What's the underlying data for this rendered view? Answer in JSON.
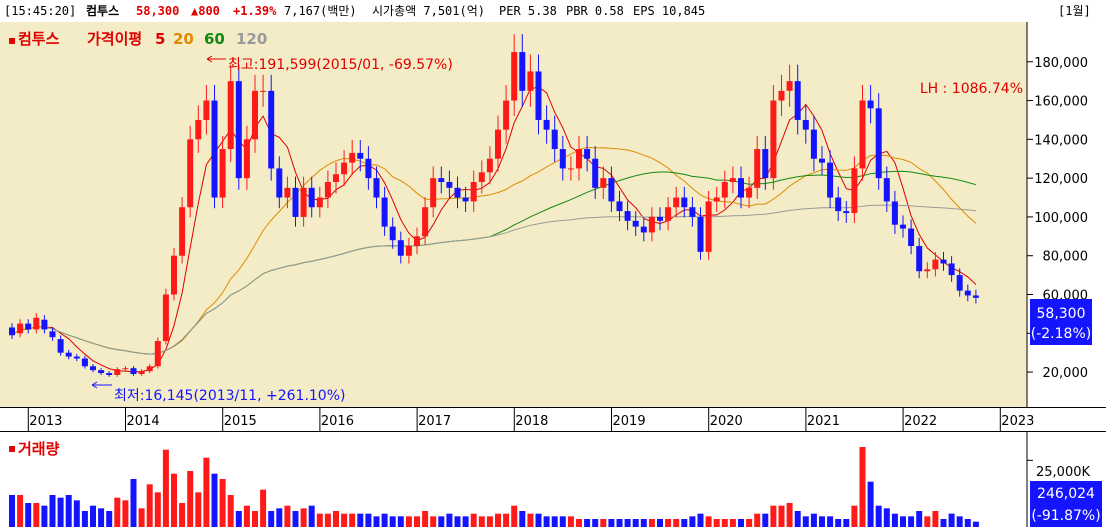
{
  "header": {
    "time": "[15:45:20]",
    "name": "컴투스",
    "price": "58,300",
    "change": "▲800",
    "change_pct": "+1.39%",
    "cap_label": "7,167(백만)",
    "market_cap": "시가총액 7,501(억)",
    "per": "PER 5.38",
    "pbr": "PBR 0.58",
    "eps": "EPS 10,845",
    "period": "[1월]"
  },
  "legend": {
    "marker": "▪",
    "name": "컴투스",
    "ma_prefix": "가격이평",
    "ma": [
      {
        "label": "5",
        "color": "#e00000"
      },
      {
        "label": "20",
        "color": "#e08a00"
      },
      {
        "label": "60",
        "color": "#128a12"
      },
      {
        "label": "120",
        "color": "#9a9a9a"
      }
    ]
  },
  "annotations": {
    "high": "최고:191,599(2015/01, -69.57%)",
    "low": "최저:16,145(2013/11, +261.10%)",
    "lh": "LH : 1086.74%",
    "last_price": "58,300",
    "last_pct": "(-2.18%)"
  },
  "volume": {
    "title": "거래량",
    "axis_label": "25,000K",
    "last_value": "246,024",
    "last_pct": "(-91.87%)"
  },
  "colors": {
    "up": "#ff1a1a",
    "down": "#1414ff",
    "bg": "#f3ecc6",
    "ma5": "#e00000",
    "ma20": "#e08a00",
    "ma60": "#128a12",
    "ma120": "#9a9a9a"
  },
  "chart_data": {
    "type": "candlestick",
    "interval": "monthly",
    "start": "2012-10",
    "y_ticks": [
      20000,
      40000,
      60000,
      80000,
      100000,
      120000,
      140000,
      160000,
      180000
    ],
    "y_tick_labels": [
      "20,000",
      "40,000",
      "60,000",
      "80,000",
      "100,000",
      "120,000",
      "140,000",
      "160,000",
      "180,000"
    ],
    "ylim": [
      2000,
      200500
    ],
    "x_ticks": [
      {
        "label": "2013",
        "index": 3
      },
      {
        "label": "2014",
        "index": 15
      },
      {
        "label": "2015",
        "index": 27
      },
      {
        "label": "2016",
        "index": 39
      },
      {
        "label": "2017",
        "index": 51
      },
      {
        "label": "2018",
        "index": 63
      },
      {
        "label": "2019",
        "index": 75
      },
      {
        "label": "2020",
        "index": 87
      },
      {
        "label": "2021",
        "index": 99
      },
      {
        "label": "2022",
        "index": 111
      },
      {
        "label": "2023",
        "index": 123
      }
    ],
    "close": [
      39000,
      45000,
      42000,
      48000,
      42000,
      38000,
      30000,
      28000,
      27000,
      23000,
      21000,
      19500,
      18500,
      21500,
      22000,
      19000,
      20500,
      23000,
      36000,
      60000,
      80000,
      105000,
      140000,
      150000,
      160000,
      110000,
      135000,
      170000,
      120000,
      140000,
      165000,
      165000,
      125000,
      110000,
      115000,
      100000,
      115000,
      105000,
      110000,
      118000,
      122000,
      128000,
      133000,
      130000,
      120000,
      110000,
      95000,
      88000,
      80000,
      85000,
      90000,
      105000,
      120000,
      118000,
      115000,
      110000,
      108000,
      118000,
      123000,
      130000,
      145000,
      160000,
      185000,
      165000,
      175000,
      150000,
      145000,
      135000,
      125000,
      125000,
      135000,
      130000,
      115000,
      120000,
      108000,
      103000,
      98000,
      95000,
      92000,
      100000,
      98000,
      105000,
      110000,
      105000,
      100000,
      82000,
      108000,
      110000,
      118000,
      120000,
      110000,
      115000,
      135000,
      120000,
      160000,
      165000,
      170000,
      150000,
      145000,
      130000,
      128000,
      110000,
      103000,
      102000,
      125000,
      160000,
      156000,
      120000,
      108000,
      96000,
      94000,
      85000,
      72000,
      73000,
      78000,
      76000,
      70000,
      62000,
      59500,
      58300
    ],
    "open": [
      43000,
      40000,
      45000,
      42000,
      47000,
      41000,
      37000,
      30000,
      28000,
      27000,
      23000,
      21000,
      19500,
      18500,
      21500,
      22000,
      19000,
      20500,
      23000,
      36000,
      60000,
      80000,
      105000,
      140000,
      150000,
      160000,
      110000,
      135000,
      170000,
      120000,
      140000,
      165000,
      165000,
      125000,
      110000,
      115000,
      100000,
      115000,
      105000,
      110000,
      118000,
      122000,
      128000,
      133000,
      130000,
      120000,
      110000,
      95000,
      88000,
      80000,
      85000,
      90000,
      105000,
      120000,
      118000,
      115000,
      110000,
      108000,
      118000,
      123000,
      130000,
      145000,
      160000,
      185000,
      165000,
      175000,
      150000,
      145000,
      135000,
      125000,
      125000,
      135000,
      130000,
      115000,
      120000,
      108000,
      103000,
      98000,
      95000,
      92000,
      100000,
      98000,
      105000,
      110000,
      105000,
      100000,
      82000,
      108000,
      110000,
      118000,
      120000,
      110000,
      115000,
      135000,
      120000,
      160000,
      165000,
      170000,
      150000,
      145000,
      130000,
      128000,
      110000,
      103000,
      102000,
      125000,
      160000,
      156000,
      120000,
      108000,
      96000,
      94000,
      85000,
      72000,
      73000,
      78000,
      76000,
      70000,
      62000,
      59500
    ],
    "volume_unit": "K shares (approx.)",
    "volume": [
      12000,
      12000,
      9000,
      9000,
      8000,
      12000,
      11000,
      12000,
      10000,
      6000,
      8000,
      7000,
      6000,
      11000,
      10000,
      18000,
      7000,
      16000,
      13000,
      29000,
      20000,
      9000,
      21000,
      13000,
      26000,
      20000,
      18000,
      12000,
      6000,
      8000,
      6000,
      14000,
      6000,
      7000,
      8000,
      6000,
      7000,
      8000,
      5000,
      5000,
      6000,
      5000,
      5000,
      5000,
      5000,
      4000,
      5000,
      4000,
      4000,
      4000,
      4000,
      6000,
      4000,
      4000,
      5000,
      4000,
      4000,
      5000,
      4000,
      4000,
      5000,
      5000,
      8000,
      6000,
      5000,
      5000,
      4000,
      4000,
      4000,
      4000,
      3000,
      3000,
      3000,
      3000,
      3000,
      3000,
      3000,
      3000,
      3000,
      3000,
      3000,
      3000,
      3000,
      3000,
      4000,
      5000,
      4000,
      3000,
      3000,
      3000,
      3000,
      3000,
      5000,
      5000,
      8000,
      8000,
      9000,
      6000,
      4000,
      5000,
      4000,
      4000,
      3000,
      3000,
      8000,
      40000,
      17000,
      8000,
      7000,
      5000,
      4000,
      4000,
      6000,
      4000,
      6000,
      3000,
      5000,
      4000,
      3000,
      2000
    ],
    "volume_ylim": [
      0,
      30000
    ]
  }
}
